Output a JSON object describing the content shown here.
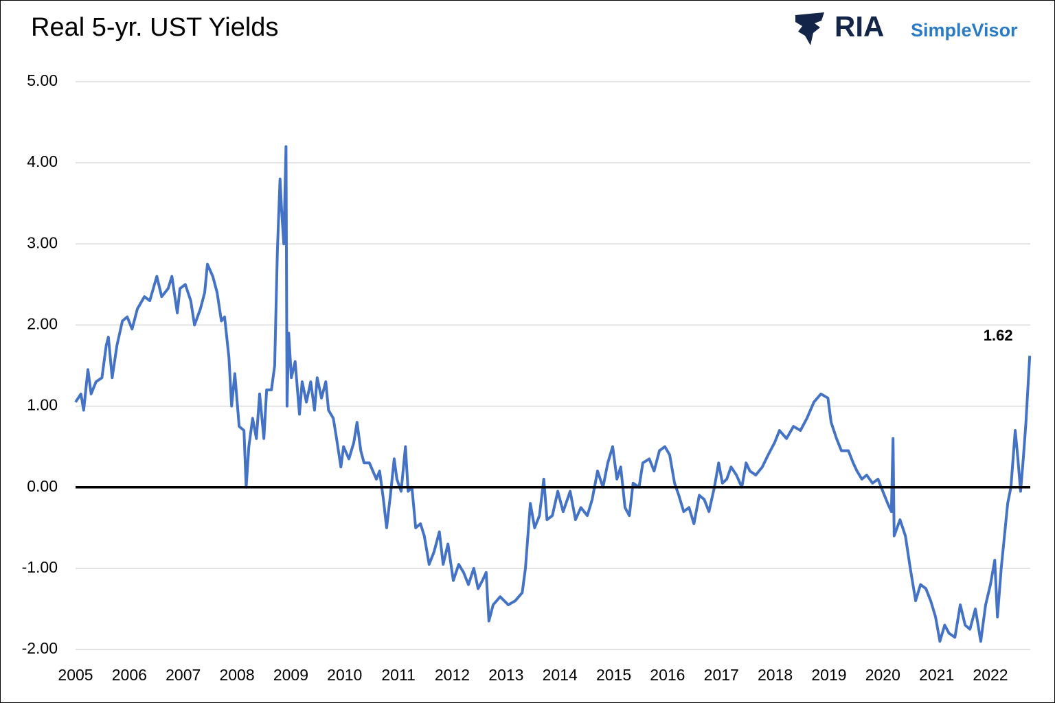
{
  "chart_data": {
    "type": "line",
    "title": "Real 5-yr. UST Yields",
    "logo": {
      "brand": "RIA",
      "product": "SimpleVisor"
    },
    "annotation": "1.62",
    "x": [
      2005.0,
      2005.1,
      2005.15,
      2005.23,
      2005.29,
      2005.38,
      2005.49,
      2005.57,
      2005.61,
      2005.68,
      2005.77,
      2005.87,
      2005.96,
      2006.05,
      2006.15,
      2006.28,
      2006.38,
      2006.51,
      2006.6,
      2006.72,
      2006.79,
      2006.89,
      2006.94,
      2007.04,
      2007.14,
      2007.21,
      2007.32,
      2007.4,
      2007.45,
      2007.55,
      2007.63,
      2007.71,
      2007.77,
      2007.85,
      2007.9,
      2007.96,
      2008.04,
      2008.13,
      2008.17,
      2008.22,
      2008.29,
      2008.36,
      2008.42,
      2008.5,
      2008.55,
      2008.64,
      2008.7,
      2008.75,
      2008.8,
      2008.83,
      2008.87,
      2008.91,
      2008.93,
      2008.96,
      2009.01,
      2009.08,
      2009.16,
      2009.21,
      2009.29,
      2009.37,
      2009.44,
      2009.49,
      2009.57,
      2009.65,
      2009.7,
      2009.79,
      2009.85,
      2009.93,
      2009.98,
      2010.08,
      2010.17,
      2010.23,
      2010.3,
      2010.36,
      2010.46,
      2010.59,
      2010.65,
      2010.72,
      2010.78,
      2010.85,
      2010.92,
      2010.97,
      2011.05,
      2011.13,
      2011.18,
      2011.25,
      2011.32,
      2011.41,
      2011.48,
      2011.57,
      2011.66,
      2011.76,
      2011.83,
      2011.92,
      2012.02,
      2012.12,
      2012.21,
      2012.3,
      2012.4,
      2012.48,
      2012.56,
      2012.63,
      2012.68,
      2012.76,
      2012.89,
      2013.04,
      2013.17,
      2013.3,
      2013.36,
      2013.45,
      2013.53,
      2013.62,
      2013.7,
      2013.76,
      2013.86,
      2013.96,
      2014.06,
      2014.19,
      2014.29,
      2014.39,
      2014.51,
      2014.6,
      2014.7,
      2014.8,
      2014.89,
      2014.98,
      2015.06,
      2015.13,
      2015.21,
      2015.29,
      2015.36,
      2015.47,
      2015.54,
      2015.66,
      2015.75,
      2015.85,
      2015.95,
      2016.04,
      2016.13,
      2016.21,
      2016.3,
      2016.4,
      2016.49,
      2016.59,
      2016.68,
      2016.77,
      2016.87,
      2016.95,
      2017.02,
      2017.1,
      2017.18,
      2017.28,
      2017.38,
      2017.46,
      2017.53,
      2017.64,
      2017.76,
      2017.87,
      2017.99,
      2018.08,
      2018.21,
      2018.34,
      2018.47,
      2018.59,
      2018.72,
      2018.85,
      2018.98,
      2019.04,
      2019.14,
      2019.23,
      2019.36,
      2019.45,
      2019.52,
      2019.61,
      2019.7,
      2019.81,
      2019.91,
      2020.0,
      2020.09,
      2020.16,
      2020.19,
      2020.21,
      2020.32,
      2020.42,
      2020.51,
      2020.61,
      2020.7,
      2020.8,
      2020.89,
      2020.98,
      2021.06,
      2021.15,
      2021.23,
      2021.34,
      2021.44,
      2021.53,
      2021.62,
      2021.72,
      2021.82,
      2021.91,
      2022.0,
      2022.08,
      2022.13,
      2022.2,
      2022.26,
      2022.32,
      2022.38,
      2022.46,
      2022.51,
      2022.56,
      2022.61,
      2022.66,
      2022.73
    ],
    "series": [
      {
        "name": "Real 5-yr. UST Yield",
        "color": "#4472c4",
        "values": [
          1.05,
          1.15,
          0.95,
          1.45,
          1.15,
          1.3,
          1.35,
          1.75,
          1.85,
          1.35,
          1.75,
          2.05,
          2.1,
          1.95,
          2.2,
          2.35,
          2.3,
          2.6,
          2.35,
          2.45,
          2.6,
          2.15,
          2.45,
          2.5,
          2.3,
          2.0,
          2.2,
          2.4,
          2.75,
          2.6,
          2.4,
          2.05,
          2.1,
          1.6,
          1.0,
          1.4,
          0.75,
          0.7,
          0.0,
          0.5,
          0.85,
          0.6,
          1.15,
          0.6,
          1.2,
          1.2,
          1.5,
          2.9,
          3.8,
          3.4,
          3.0,
          4.2,
          1.0,
          1.9,
          1.35,
          1.55,
          0.9,
          1.3,
          1.05,
          1.3,
          0.95,
          1.35,
          1.1,
          1.3,
          0.95,
          0.85,
          0.6,
          0.25,
          0.5,
          0.35,
          0.55,
          0.8,
          0.45,
          0.3,
          0.3,
          0.1,
          0.2,
          -0.15,
          -0.5,
          -0.1,
          0.35,
          0.1,
          -0.05,
          0.5,
          -0.05,
          0.0,
          -0.5,
          -0.45,
          -0.6,
          -0.95,
          -0.8,
          -0.55,
          -0.95,
          -0.7,
          -1.15,
          -0.95,
          -1.05,
          -1.2,
          -1.0,
          -1.25,
          -1.15,
          -1.05,
          -1.65,
          -1.45,
          -1.35,
          -1.45,
          -1.4,
          -1.3,
          -1.0,
          -0.2,
          -0.5,
          -0.35,
          0.1,
          -0.4,
          -0.35,
          -0.05,
          -0.3,
          -0.05,
          -0.4,
          -0.25,
          -0.35,
          -0.15,
          0.2,
          0.0,
          0.3,
          0.5,
          0.1,
          0.25,
          -0.25,
          -0.35,
          0.05,
          0.0,
          0.3,
          0.35,
          0.2,
          0.45,
          0.5,
          0.4,
          0.05,
          -0.1,
          -0.3,
          -0.25,
          -0.45,
          -0.1,
          -0.15,
          -0.3,
          0.0,
          0.3,
          0.05,
          0.1,
          0.25,
          0.15,
          0.0,
          0.3,
          0.2,
          0.15,
          0.25,
          0.4,
          0.55,
          0.7,
          0.6,
          0.75,
          0.7,
          0.85,
          1.05,
          1.15,
          1.1,
          0.8,
          0.6,
          0.45,
          0.45,
          0.3,
          0.2,
          0.1,
          0.15,
          0.05,
          0.1,
          -0.05,
          -0.2,
          -0.3,
          0.6,
          -0.6,
          -0.4,
          -0.6,
          -1.0,
          -1.4,
          -1.2,
          -1.25,
          -1.4,
          -1.6,
          -1.9,
          -1.7,
          -1.8,
          -1.85,
          -1.45,
          -1.7,
          -1.75,
          -1.5,
          -1.9,
          -1.45,
          -1.2,
          -0.9,
          -1.6,
          -1.0,
          -0.6,
          -0.2,
          0.0,
          0.7,
          0.35,
          -0.05,
          0.35,
          0.8,
          1.62
        ]
      }
    ],
    "xlim": [
      2005,
      2022.74
    ],
    "xticks": [
      2005,
      2006,
      2007,
      2008,
      2009,
      2010,
      2011,
      2012,
      2013,
      2014,
      2015,
      2016,
      2017,
      2018,
      2019,
      2020,
      2021,
      2022
    ],
    "ylim": [
      -2,
      5
    ],
    "yticks": [
      {
        "value": -2,
        "label": "-2.00"
      },
      {
        "value": -1,
        "label": "-1.00"
      },
      {
        "value": 0,
        "label": "0.00"
      },
      {
        "value": 1,
        "label": "1.00"
      },
      {
        "value": 2,
        "label": "2.00"
      },
      {
        "value": 3,
        "label": "3.00"
      },
      {
        "value": 4,
        "label": "4.00"
      },
      {
        "value": 5,
        "label": "5.00"
      }
    ],
    "grid": true,
    "zero_line": true
  }
}
